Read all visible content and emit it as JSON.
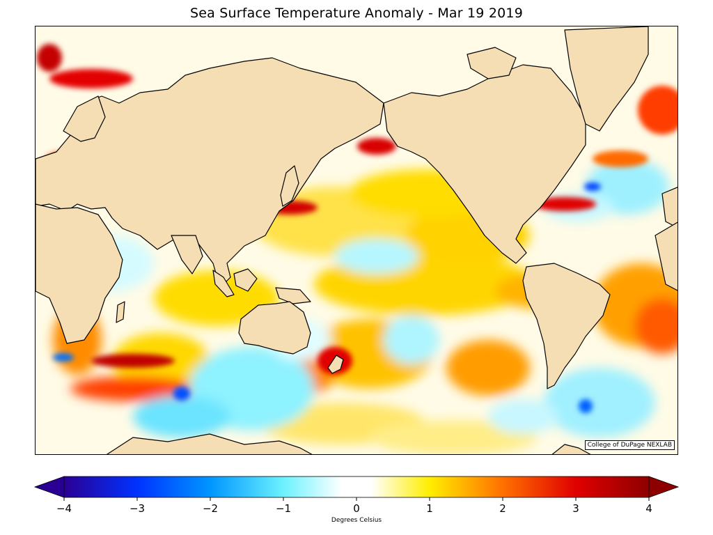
{
  "title": "Sea Surface Temperature Anomaly - Mar 19 2019",
  "credit": "College of DuPage NEXLAB",
  "colorbar": {
    "label": "Degrees Celsius",
    "min": -4,
    "max": 4,
    "ticks": [
      "−4",
      "−3",
      "−2",
      "−1",
      "0",
      "1",
      "2",
      "3",
      "4"
    ],
    "stops": [
      {
        "value": -4,
        "color": "#2a0094"
      },
      {
        "value": -3,
        "color": "#0032ff"
      },
      {
        "value": -2,
        "color": "#0096ff"
      },
      {
        "value": -1,
        "color": "#6cf2ff"
      },
      {
        "value": -0.2,
        "color": "#ffffff"
      },
      {
        "value": 0.2,
        "color": "#ffffff"
      },
      {
        "value": 1,
        "color": "#ffee00"
      },
      {
        "value": 2,
        "color": "#ff7000"
      },
      {
        "value": 3,
        "color": "#e00000"
      },
      {
        "value": 4,
        "color": "#8e0000"
      }
    ]
  },
  "colors": {
    "land": "#f5deb3",
    "land_border": "#000000",
    "ocean_neutral": "#fffbe6"
  }
}
